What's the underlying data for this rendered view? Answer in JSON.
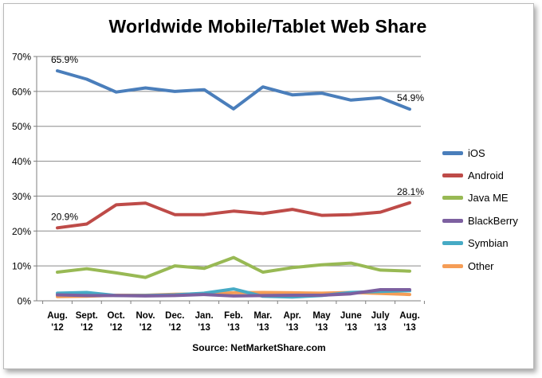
{
  "chart_data": {
    "type": "line",
    "title": "Worldwide Mobile/Tablet Web Share",
    "source": "Source: NetMarketShare.com",
    "ylim": [
      0,
      70
    ],
    "yticks": [
      "0%",
      "10%",
      "20%",
      "30%",
      "40%",
      "50%",
      "60%",
      "70%"
    ],
    "grid": true,
    "legend_position": "right",
    "categories": [
      [
        "Aug.",
        "'12"
      ],
      [
        "Sept.",
        "'12"
      ],
      [
        "Oct.",
        "'12"
      ],
      [
        "Nov.",
        "'12"
      ],
      [
        "Dec.",
        "'12"
      ],
      [
        "Jan.",
        "'13"
      ],
      [
        "Feb.",
        "'13"
      ],
      [
        "Mar.",
        "'13"
      ],
      [
        "Apr.",
        "'13"
      ],
      [
        "May",
        "'13"
      ],
      [
        "June",
        "'13"
      ],
      [
        "July",
        "'13"
      ],
      [
        "Aug.",
        "'13"
      ]
    ],
    "series": [
      {
        "name": "iOS",
        "color": "#4a7ebb",
        "values": [
          65.9,
          63.5,
          59.8,
          61.0,
          60.0,
          60.5,
          55.0,
          61.3,
          59.0,
          59.5,
          57.5,
          58.2,
          54.9
        ]
      },
      {
        "name": "Android",
        "color": "#be4b48",
        "values": [
          20.9,
          22.0,
          27.5,
          28.0,
          24.7,
          24.7,
          25.7,
          25.0,
          26.2,
          24.5,
          24.7,
          25.4,
          28.1
        ]
      },
      {
        "name": "Java ME",
        "color": "#98b954",
        "values": [
          8.2,
          9.2,
          8.0,
          6.7,
          10.0,
          9.3,
          12.4,
          8.2,
          9.5,
          10.3,
          10.8,
          8.8,
          8.5
        ]
      },
      {
        "name": "BlackBerry",
        "color": "#7d60a0",
        "values": [
          1.7,
          1.5,
          1.5,
          1.4,
          1.5,
          1.8,
          1.4,
          1.5,
          1.6,
          1.6,
          2.0,
          3.2,
          3.2
        ]
      },
      {
        "name": "Symbian",
        "color": "#46aac5",
        "values": [
          2.2,
          2.4,
          1.5,
          1.5,
          1.7,
          2.2,
          3.4,
          1.3,
          1.1,
          1.5,
          2.4,
          2.7,
          2.9
        ]
      },
      {
        "name": "Other",
        "color": "#f59d56",
        "values": [
          1.2,
          1.3,
          1.6,
          1.6,
          1.9,
          2.0,
          2.3,
          2.4,
          2.3,
          2.2,
          2.4,
          2.1,
          1.8
        ]
      }
    ],
    "annotations": [
      {
        "series": "iOS",
        "index": 0,
        "text": "65.9%"
      },
      {
        "series": "iOS",
        "index": 12,
        "text": "54.9%"
      },
      {
        "series": "Android",
        "index": 0,
        "text": "20.9%"
      },
      {
        "series": "Android",
        "index": 12,
        "text": "28.1%"
      }
    ]
  }
}
